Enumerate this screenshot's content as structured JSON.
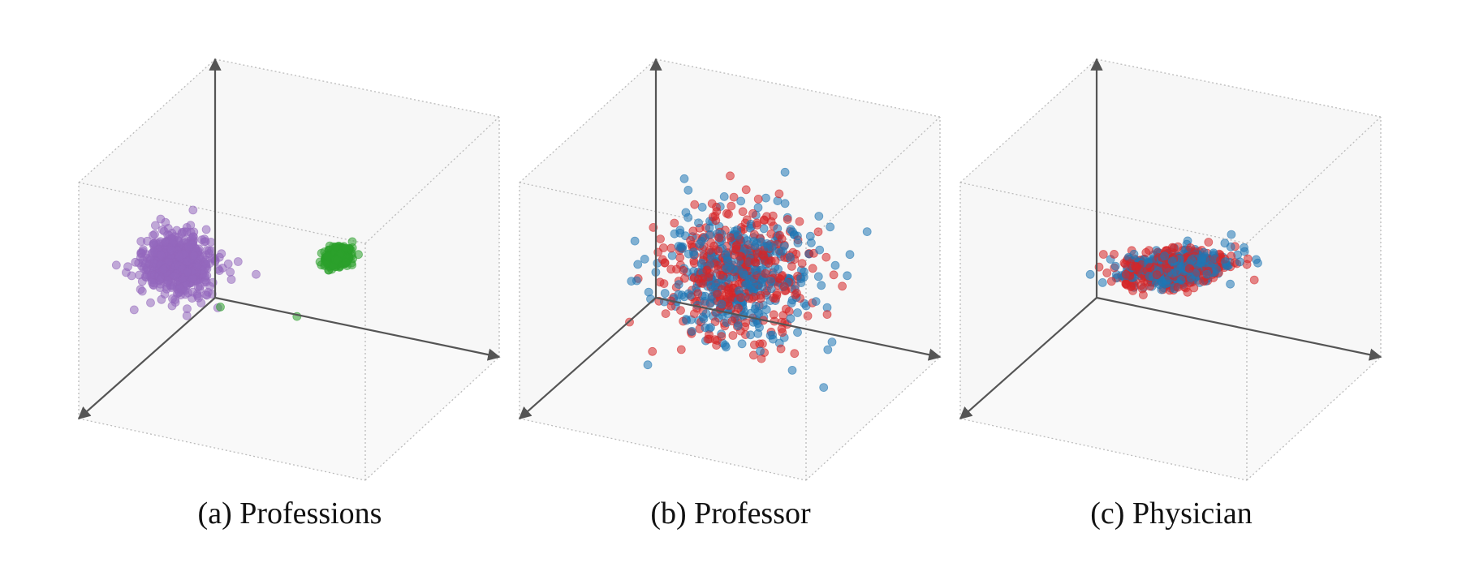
{
  "captions": [
    "(a) Professions",
    "(b) Professor",
    "(c) Physician"
  ],
  "colors": {
    "purple": "#9467bd",
    "green": "#2ca02c",
    "blue": "#1f77b4",
    "red": "#d62728",
    "axis": "#555555",
    "box_edge": "#bbbbbb",
    "box_face": "#f4f4f4"
  },
  "chart_data": [
    {
      "type": "scatter",
      "subtype": "3d",
      "title": "(a) Professions",
      "xlim": [
        -3,
        3
      ],
      "ylim": [
        -3,
        3
      ],
      "zlim": [
        -3,
        3
      ],
      "grid": false,
      "series": [
        {
          "color": "#9467bd",
          "count": 700,
          "center": [
            -2.2,
            0.3,
            -0.3
          ],
          "spread": [
            0.35,
            0.3,
            0.35
          ],
          "direction": [
            0,
            0,
            0
          ],
          "t_spread": 0
        },
        {
          "color": "#2ca02c",
          "count": 360,
          "center": [
            1.6,
            1.2,
            1.3
          ],
          "spread": [
            0.1,
            0.1,
            0.1
          ],
          "direction": [
            0.5,
            0.75,
            0.6
          ],
          "t_spread": 0.55,
          "outliers": [
            [
              -0.2,
              2.6,
              0.3
            ],
            [
              0.6,
              0.9,
              -0.6
            ]
          ]
        }
      ]
    },
    {
      "type": "scatter",
      "subtype": "3d",
      "title": "(b) Professor",
      "xlim": [
        -3,
        3
      ],
      "ylim": [
        -3,
        3
      ],
      "zlim": [
        -3,
        3
      ],
      "grid": false,
      "series": [
        {
          "color": "#1f77b4",
          "count": 380,
          "center": [
            0.3,
            0.3,
            0.1
          ],
          "spread": [
            0.75,
            0.75,
            0.75
          ],
          "direction": [
            0,
            0,
            0
          ],
          "t_spread": 0
        },
        {
          "color": "#d62728",
          "count": 380,
          "center": [
            0.3,
            0.3,
            0.1
          ],
          "spread": [
            0.75,
            0.75,
            0.75
          ],
          "direction": [
            0,
            0,
            0
          ],
          "t_spread": 0
        }
      ]
    },
    {
      "type": "scatter",
      "subtype": "3d",
      "title": "(c) Physician",
      "xlim": [
        -3,
        3
      ],
      "ylim": [
        -3,
        3
      ],
      "zlim": [
        -3,
        3
      ],
      "grid": false,
      "series": [
        {
          "color": "#1f77b4",
          "count": 380,
          "center": [
            0.3,
            0.4,
            0.3
          ],
          "spread": [
            0.2,
            0.2,
            0.2
          ],
          "direction": [
            0.68,
            0.55,
            0.5
          ],
          "t_spread": 1.3
        },
        {
          "color": "#d62728",
          "count": 380,
          "center": [
            0.3,
            0.4,
            0.3
          ],
          "spread": [
            0.2,
            0.2,
            0.2
          ],
          "direction": [
            0.68,
            0.55,
            0.5
          ],
          "t_spread": 1.3
        }
      ]
    }
  ]
}
